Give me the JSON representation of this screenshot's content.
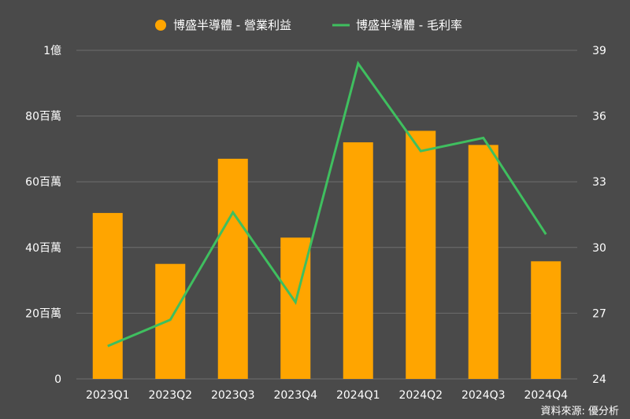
{
  "chart_data": {
    "type": "bar+line",
    "categories": [
      "2023Q1",
      "2023Q2",
      "2023Q3",
      "2023Q4",
      "2024Q1",
      "2024Q2",
      "2024Q3",
      "2024Q4"
    ],
    "series": [
      {
        "name": "博盛半導體 - 營業利益",
        "type": "bar",
        "axis": "left",
        "color": "#ffa500",
        "values": [
          50.5,
          35,
          67,
          43,
          72,
          75.5,
          71.2,
          35.8
        ]
      },
      {
        "name": "博盛半導體 - 毛利率",
        "type": "line",
        "axis": "right",
        "color": "#3fbf5f",
        "values": [
          25.5,
          26.7,
          31.6,
          27.5,
          38.4,
          34.4,
          35.0,
          30.6
        ]
      }
    ],
    "y_left": {
      "range": [
        0,
        100
      ],
      "ticks": [
        0,
        20,
        40,
        60,
        80,
        100
      ],
      "tick_labels": [
        "0",
        "20百萬",
        "40百萬",
        "60百萬",
        "80百萬",
        "1億"
      ]
    },
    "y_right": {
      "range": [
        24,
        39
      ],
      "ticks": [
        24,
        27,
        30,
        33,
        36,
        39
      ],
      "tick_labels": [
        "24",
        "27",
        "30",
        "33",
        "36",
        "39"
      ]
    },
    "grid": true,
    "legend_position": "top-center"
  },
  "source_label": "資料來源: 優分析",
  "colors": {
    "background": "#4a4a4a",
    "grid": "#6e6e6e",
    "bar": "#ffa500",
    "line": "#3fbf5f",
    "text": "#ffffff"
  }
}
